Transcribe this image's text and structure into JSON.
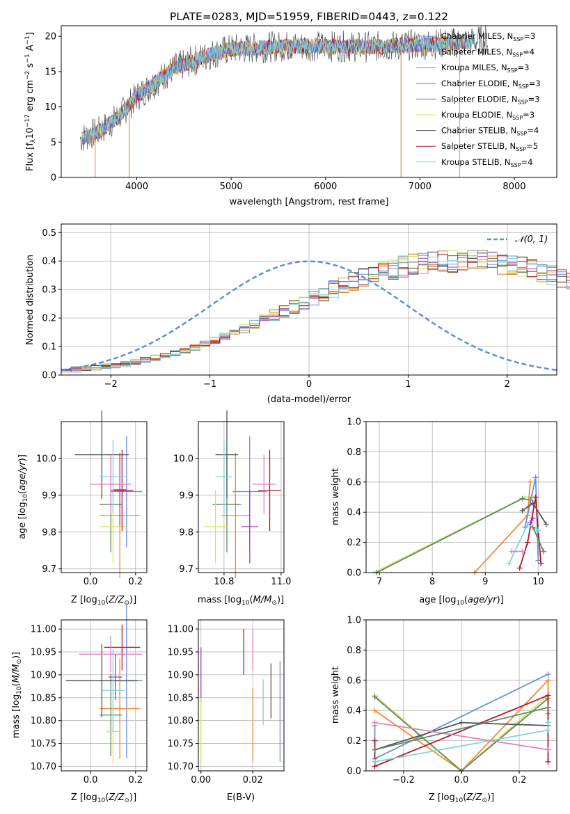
{
  "title": "PLATE=0283, MJD=51959, FIBERID=0443, z=0.122",
  "colors": {
    "chabrier_miles": "#6a8fd9",
    "salpeter_miles": "#ef8a2f",
    "kroupa_miles": "#c87d22",
    "chabrier_elodie": "#5c8a60",
    "salpeter_elodie": "#a23ec0",
    "kroupa_elodie": "#d6e35a",
    "chabrier_stelib": "#555555",
    "salpeter_stelib": "#b2182b",
    "kroupa_stelib": "#7fd3dd",
    "pink": "#e27fbd",
    "normal_curve": "#5b8fd6",
    "grid": "#b0b0b0"
  },
  "legend_spectrum": [
    "Chabrier MILES, N_SSP=3",
    "Salpeter MILES, N_SSP=4",
    "Kroupa MILES, N_SSP=3",
    "Chabrier ELODIE, N_SSP=3",
    "Salpeter ELODIE, N_SSP=3",
    "Kroupa ELODIE, N_SSP=3",
    "Chabrier STELIB, N_SSP=4",
    "Salpeter STELIB, N_SSP=5",
    "Kroupa STELIB, N_SSP=4"
  ],
  "legend_hist": "N(0,1)",
  "chart_data": [
    {
      "id": "spectrum",
      "type": "line",
      "xlabel": "wavelength [Angstrom, rest frame]",
      "ylabel": "Flux [f_λ 10^-17 erg cm^-2 s^-1 A^-1]",
      "xlim": [
        3200,
        8450
      ],
      "ylim": [
        0,
        21.5
      ],
      "xticks": [
        4000,
        5000,
        6000,
        7000,
        8000
      ],
      "yticks": [
        0,
        5,
        10,
        15,
        20
      ],
      "grid": false,
      "continuum": {
        "x": [
          3400,
          3600,
          3800,
          4000,
          4200,
          4400,
          4600,
          4800,
          5000,
          5200,
          5500,
          6000,
          6500,
          7000,
          7500,
          7800
        ],
        "y": [
          5.5,
          6.5,
          8.5,
          11.5,
          13.5,
          15.5,
          16.5,
          17.5,
          18.2,
          18.3,
          18.6,
          18.6,
          18.5,
          18.8,
          19.2,
          19.6
        ]
      }
    },
    {
      "id": "residuals",
      "type": "bar",
      "xlabel": "(data-model)/error",
      "ylabel": "Normed distribution",
      "xlim": [
        -2.5,
        2.5
      ],
      "ylim": [
        0,
        0.53
      ],
      "xticks": [
        -2,
        -1,
        0,
        1,
        2
      ],
      "yticks": [
        0.0,
        0.1,
        0.2,
        0.3,
        0.4,
        0.5
      ],
      "grid": true,
      "legend": "top-right",
      "bin_width": 0.1,
      "base": [
        0.017,
        0.019,
        0.022,
        0.026,
        0.03,
        0.035,
        0.04,
        0.046,
        0.052,
        0.06,
        0.068,
        0.077,
        0.087,
        0.097,
        0.109,
        0.121,
        0.134,
        0.148,
        0.162,
        0.177,
        0.193,
        0.208,
        0.224,
        0.24,
        0.256,
        0.272,
        0.287,
        0.302,
        0.316,
        0.33,
        0.342,
        0.354,
        0.364,
        0.373,
        0.381,
        0.387,
        0.392,
        0.396,
        0.398,
        0.399,
        0.4,
        0.399,
        0.398,
        0.396,
        0.392,
        0.387,
        0.381,
        0.373,
        0.364,
        0.354,
        0.342,
        0.33,
        0.316,
        0.302,
        0.287,
        0.272,
        0.256,
        0.24,
        0.224,
        0.208,
        0.193,
        0.177,
        0.162,
        0.148,
        0.134,
        0.121,
        0.109,
        0.097,
        0.087,
        0.077,
        0.068,
        0.06,
        0.052,
        0.046,
        0.04,
        0.035,
        0.03,
        0.026,
        0.022,
        0.019,
        0.017,
        0.015,
        0.013,
        0.011,
        0.01
      ],
      "series_count": 9
    },
    {
      "id": "age_vs_Z",
      "type": "scatter",
      "xlabel": "Z [log10(Z/Z_sun)]",
      "ylabel": "age [log10(age/yr)]",
      "xlim": [
        -0.13,
        0.25
      ],
      "ylim": [
        9.69,
        10.1
      ],
      "xticks": [
        0.0,
        0.2
      ],
      "yticks": [
        9.7,
        9.8,
        9.9,
        10.0
      ],
      "grid": true,
      "points": [
        {
          "c": "chabrier_miles",
          "x": 0.16,
          "y": 9.91,
          "xerr": 0.07,
          "yerr": 0.15
        },
        {
          "c": "salpeter_miles",
          "x": 0.13,
          "y": 9.845,
          "xerr": 0.09,
          "yerr": 0.17
        },
        {
          "c": "chabrier_elodie",
          "x": 0.09,
          "y": 9.875,
          "xerr": 0.05,
          "yerr": 0.13
        },
        {
          "c": "salpeter_elodie",
          "x": 0.13,
          "y": 9.915,
          "xerr": 0.03,
          "yerr": 0.1
        },
        {
          "c": "kroupa_elodie",
          "x": 0.1,
          "y": 9.815,
          "xerr": 0.06,
          "yerr": 0.1
        },
        {
          "c": "chabrier_stelib",
          "x": 0.05,
          "y": 10.01,
          "xerr": 0.12,
          "yerr": 0.12
        },
        {
          "c": "salpeter_stelib",
          "x": 0.14,
          "y": 9.913,
          "xerr": 0.05,
          "yerr": 0.11
        },
        {
          "c": "kroupa_stelib",
          "x": 0.1,
          "y": 9.95,
          "xerr": 0.06,
          "yerr": 0.1
        },
        {
          "c": "pink",
          "x": 0.09,
          "y": 9.93,
          "xerr": 0.09,
          "yerr": 0.08
        }
      ]
    },
    {
      "id": "age_vs_mass",
      "type": "scatter",
      "xlabel": "mass [log10(M/M_sun)]",
      "ylabel": "",
      "xlim": [
        10.71,
        11.01
      ],
      "ylim": [
        9.69,
        10.1
      ],
      "xticks": [
        10.8,
        11.0
      ],
      "yticks": [
        9.7,
        9.8,
        9.9,
        10.0
      ],
      "grid": true,
      "points": [
        {
          "c": "chabrier_miles",
          "x": 10.89,
          "y": 9.91,
          "xerr": 0.06,
          "yerr": 0.15
        },
        {
          "c": "salpeter_miles",
          "x": 10.84,
          "y": 9.845,
          "xerr": 0.05,
          "yerr": 0.17
        },
        {
          "c": "chabrier_elodie",
          "x": 10.81,
          "y": 9.875,
          "xerr": 0.05,
          "yerr": 0.13
        },
        {
          "c": "salpeter_elodie",
          "x": 10.89,
          "y": 9.815,
          "xerr": 0.03,
          "yerr": 0.1
        },
        {
          "c": "kroupa_elodie",
          "x": 10.77,
          "y": 9.815,
          "xerr": 0.04,
          "yerr": 0.1
        },
        {
          "c": "chabrier_stelib",
          "x": 10.81,
          "y": 10.01,
          "xerr": 0.04,
          "yerr": 0.12
        },
        {
          "c": "salpeter_stelib",
          "x": 10.96,
          "y": 9.913,
          "xerr": 0.04,
          "yerr": 0.11
        },
        {
          "c": "kroupa_stelib",
          "x": 10.8,
          "y": 9.95,
          "xerr": 0.03,
          "yerr": 0.1
        },
        {
          "c": "pink",
          "x": 10.94,
          "y": 9.93,
          "xerr": 0.04,
          "yerr": 0.08
        }
      ]
    },
    {
      "id": "weight_vs_age",
      "type": "line",
      "xlabel": "age [log10(age/yr)]",
      "ylabel": "mass weight",
      "xlim": [
        6.75,
        10.35
      ],
      "ylim": [
        0,
        1.0
      ],
      "xticks": [
        7,
        8,
        9,
        10
      ],
      "yticks": [
        0.0,
        0.2,
        0.4,
        0.6,
        0.8,
        1.0
      ],
      "grid": true,
      "series": [
        {
          "c": "kroupa_elodie",
          "x": [
            6.9,
            9.75,
            9.9
          ],
          "y": [
            0.0,
            0.5,
            0.5
          ]
        },
        {
          "c": "chabrier_elodie",
          "x": [
            6.95,
            9.7,
            9.85
          ],
          "y": [
            0.0,
            0.49,
            0.48
          ]
        },
        {
          "c": "salpeter_miles",
          "x": [
            8.8,
            9.8,
            9.85
          ],
          "y": [
            0.0,
            0.38,
            0.6
          ]
        },
        {
          "c": "chabrier_miles",
          "x": [
            9.75,
            9.95,
            10.0
          ],
          "y": [
            0.3,
            0.63,
            0.08
          ]
        },
        {
          "c": "salpeter_stelib",
          "x": [
            9.65,
            9.8,
            9.95,
            10.05
          ],
          "y": [
            0.03,
            0.2,
            0.5,
            0.06
          ]
        },
        {
          "c": "chabrier_stelib",
          "x": [
            9.7,
            9.9,
            10.15
          ],
          "y": [
            0.41,
            0.46,
            0.32
          ]
        },
        {
          "c": "kroupa_stelib",
          "x": [
            9.45,
            9.8,
            10.0
          ],
          "y": [
            0.06,
            0.32,
            0.28
          ]
        },
        {
          "c": "pink",
          "x": [
            9.5,
            9.7
          ],
          "y": [
            0.14,
            0.14
          ]
        },
        {
          "c": "salpeter_elodie",
          "x": [
            9.85,
            9.9
          ],
          "y": [
            0.33,
            0.36
          ]
        },
        {
          "c": "chabrier_elodie",
          "x": [
            9.9,
            10.1
          ],
          "y": [
            0.3,
            0.14
          ]
        }
      ]
    },
    {
      "id": "mass_vs_Z",
      "type": "scatter",
      "xlabel": "Z [log10(Z/Z_sun)]",
      "ylabel": "mass [log10(M/M_sun)]",
      "xlim": [
        -0.13,
        0.25
      ],
      "ylim": [
        10.69,
        11.02
      ],
      "xticks": [
        0.0,
        0.2
      ],
      "yticks": [
        10.7,
        10.75,
        10.8,
        10.85,
        10.9,
        10.95,
        11.0
      ],
      "grid": true,
      "points": [
        {
          "c": "chabrier_miles",
          "x": 0.16,
          "y": 10.887,
          "xerr": 0.07,
          "yerr": 0.17
        },
        {
          "c": "salpeter_miles",
          "x": 0.13,
          "y": 10.826,
          "xerr": 0.09,
          "yerr": 0.11
        },
        {
          "c": "chabrier_elodie",
          "x": 0.09,
          "y": 10.812,
          "xerr": 0.05,
          "yerr": 0.09
        },
        {
          "c": "salpeter_elodie",
          "x": 0.11,
          "y": 10.895,
          "xerr": 0.03,
          "yerr": 0.05
        },
        {
          "c": "kroupa_elodie",
          "x": 0.1,
          "y": 10.776,
          "xerr": 0.03,
          "yerr": 0.07
        },
        {
          "c": "chabrier_stelib",
          "x": 0.05,
          "y": 10.887,
          "xerr": 0.16,
          "yerr": 0.08
        },
        {
          "c": "salpeter_stelib",
          "x": 0.14,
          "y": 10.96,
          "xerr": 0.08,
          "yerr": 0.05
        },
        {
          "c": "kroupa_stelib",
          "x": 0.1,
          "y": 10.866,
          "xerr": 0.05,
          "yerr": 0.09
        },
        {
          "c": "pink",
          "x": 0.09,
          "y": 10.945,
          "xerr": 0.14,
          "yerr": 0.04
        }
      ]
    },
    {
      "id": "mass_vs_EBV",
      "type": "scatter",
      "xlabel": "E(B-V)",
      "ylabel": "",
      "xlim": [
        -0.001,
        0.032
      ],
      "ylim": [
        10.69,
        11.02
      ],
      "xticks": [
        0.0,
        0.02
      ],
      "yticks": [
        10.7,
        10.75,
        10.8,
        10.85,
        10.9,
        10.95,
        11.0
      ],
      "grid": true,
      "points": [
        {
          "c": "salpeter_elodie",
          "x": 0.0,
          "y": 10.9,
          "xerr": 0,
          "yerr": 0.06
        },
        {
          "c": "kroupa_elodie",
          "x": 0.0,
          "y": 10.78,
          "xerr": 0,
          "yerr": 0.07
        },
        {
          "c": "salpeter_stelib",
          "x": 0.0165,
          "y": 10.95,
          "xerr": 0,
          "yerr": 0.05
        },
        {
          "c": "salpeter_miles",
          "x": 0.02,
          "y": 10.79,
          "xerr": 0,
          "yerr": 0.08
        },
        {
          "c": "pink",
          "x": 0.02,
          "y": 10.955,
          "xerr": 0,
          "yerr": 0.045
        },
        {
          "c": "kroupa_stelib",
          "x": 0.024,
          "y": 10.84,
          "xerr": 0,
          "yerr": 0.05
        },
        {
          "c": "chabrier_stelib",
          "x": 0.027,
          "y": 10.865,
          "xerr": 0,
          "yerr": 0.06
        },
        {
          "c": "chabrier_miles",
          "x": 0.0305,
          "y": 10.82,
          "xerr": 0,
          "yerr": 0.11
        }
      ]
    },
    {
      "id": "weight_vs_Z",
      "type": "line",
      "xlabel": "Z [log10(Z/Z_sun)]",
      "ylabel": "mass weight",
      "xlim": [
        -0.33,
        0.33
      ],
      "ylim": [
        0,
        1.0
      ],
      "xticks": [
        -0.2,
        0.0,
        0.2
      ],
      "yticks": [
        0.0,
        0.2,
        0.4,
        0.6,
        0.8,
        1.0
      ],
      "grid": true,
      "series": [
        {
          "c": "chabrier_miles",
          "x": [
            -0.3,
            -0.3,
            0.3
          ],
          "y": [
            0.3,
            0.08,
            0.64
          ]
        },
        {
          "c": "salpeter_miles",
          "x": [
            -0.3,
            0.0,
            0.3,
            0.3
          ],
          "y": [
            0.4,
            0.0,
            0.6,
            0.38
          ]
        },
        {
          "c": "kroupa_elodie",
          "x": [
            -0.3,
            0.0,
            0.3
          ],
          "y": [
            0.5,
            0.0,
            0.5
          ]
        },
        {
          "c": "chabrier_elodie",
          "x": [
            -0.3,
            0.0,
            0.3
          ],
          "y": [
            0.49,
            0.0,
            0.48
          ]
        },
        {
          "c": "chabrier_stelib",
          "x": [
            -0.3,
            0.0,
            0.3
          ],
          "y": [
            0.14,
            0.32,
            0.3
          ]
        },
        {
          "c": "salpeter_stelib",
          "x": [
            -0.3,
            -0.3,
            0.3,
            0.3
          ],
          "y": [
            0.2,
            0.03,
            0.5,
            0.06
          ]
        },
        {
          "c": "kroupa_stelib",
          "x": [
            -0.3,
            0.3,
            0.3
          ],
          "y": [
            0.06,
            0.27,
            0.32
          ]
        },
        {
          "c": "pink",
          "x": [
            -0.3,
            0.3
          ],
          "y": [
            0.32,
            0.14
          ]
        },
        {
          "c": "chabrier_elodie",
          "x": [
            -0.3,
            0.3
          ],
          "y": [
            0.14,
            0.42
          ]
        }
      ]
    }
  ]
}
